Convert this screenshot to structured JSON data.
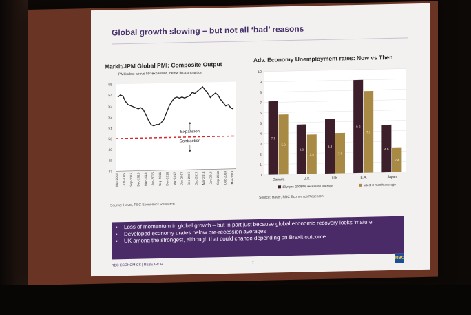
{
  "slide": {
    "title": "Global growth slowing – but not all ‘bad’ reasons",
    "footer": "RBC ECONOMICS | RESEARCH",
    "page": "2",
    "logo_text": "RBC"
  },
  "pmi_chart": {
    "title": "Markit/JPM Global PMI:  Composite Output",
    "subtitle": "PMI index: above 50=expansion, below 50=contraction",
    "source": "Source: Haver, RBC Economics Research",
    "expansion_label": "Expansion",
    "contraction_label": "Contraction"
  },
  "unemp_chart": {
    "title": "Adv. Economy Unemployment rates: Now vs Then",
    "source": "Source: Haver, RBC Economics Research"
  },
  "bullets": [
    "Loss of momentum in global growth – but in part just because global economic recovery looks ‘mature’",
    "Developed economy urates below pre-recession averages",
    "UK among the strongest, although that could change depending on Brexit outcome"
  ],
  "chart_data": [
    {
      "type": "line",
      "title": "Markit/JPM Global PMI:  Composite Output",
      "ylim": [
        47,
        55
      ],
      "yticks": [
        47,
        48,
        49,
        50,
        51,
        52,
        53,
        54,
        55
      ],
      "x_tick_labels": [
        "Mar-2015",
        "Jun-2015",
        "Sep-2015",
        "Dec-2015",
        "Mar-2016",
        "Jun-2016",
        "Sep-2016",
        "Dec-2016",
        "Mar-2017",
        "Jun-2017",
        "Sep-2017",
        "Dec-2017",
        "Mar-2018",
        "Jun-2018",
        "Sep-2018",
        "Dec-2018",
        "Mar-2019"
      ],
      "threshold": 50,
      "series": [
        {
          "color": "#222222",
          "values": [
            53.8,
            54.0,
            53.9,
            53.4,
            53.1,
            53.0,
            52.9,
            52.8,
            52.7,
            52.8,
            52.6,
            52.1,
            51.6,
            51.2,
            51.1,
            51.2,
            51.2,
            51.4,
            51.7,
            52.3,
            52.9,
            53.3,
            53.6,
            53.7,
            53.6,
            53.7,
            53.6,
            53.7,
            53.8,
            54.1,
            54.0,
            54.2,
            54.4,
            54.6,
            54.3,
            54.0,
            53.6,
            53.8,
            54.0,
            53.8,
            53.4,
            53.1,
            52.8,
            52.9,
            52.6,
            52.5
          ]
        }
      ]
    },
    {
      "type": "bar",
      "ylim": [
        0,
        10
      ],
      "yticks": [
        0,
        1,
        2,
        3,
        4,
        5,
        6,
        7,
        8,
        9,
        10
      ],
      "categories": [
        "Canada",
        "U.S.",
        "U.K.",
        "E.A.",
        "Japan"
      ],
      "series": [
        {
          "name": "10yr pre-2008/09 recession average",
          "color": "#3d1f2b",
          "values": [
            7.1,
            4.8,
            5.3,
            9.0,
            4.6
          ]
        },
        {
          "name": "latest 3-month average",
          "color": "#a88a45",
          "values": [
            5.8,
            3.8,
            3.9,
            7.9,
            2.4
          ]
        }
      ]
    }
  ]
}
